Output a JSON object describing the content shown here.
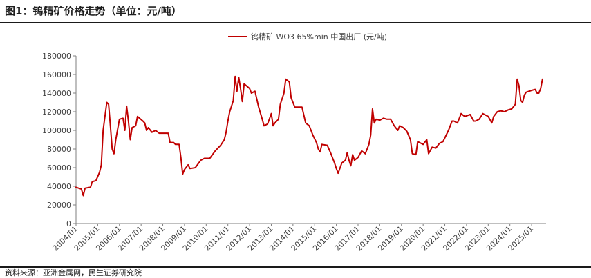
{
  "figure": {
    "title": "图1：钨精矿价格走势（单位：元/吨）",
    "source": "资料来源：亚洲金属网，民生证券研究院"
  },
  "colors": {
    "series": "#C00000",
    "axis": "#7f7f7f",
    "text": "#404040",
    "rule": "#1a1a1a"
  },
  "chart_data": {
    "type": "line",
    "title": "",
    "xlabel": "",
    "ylabel": "",
    "grid": false,
    "legend_position": "top-center",
    "ylim": [
      0,
      180000
    ],
    "yticks": [
      0,
      20000,
      40000,
      60000,
      80000,
      100000,
      120000,
      140000,
      160000,
      180000
    ],
    "xlim": [
      "2004/01",
      "2025/09"
    ],
    "xticks": [
      "2004/01",
      "2005/01",
      "2006/01",
      "2007/01",
      "2008/01",
      "2009/01",
      "2010/01",
      "2011/01",
      "2012/01",
      "2013/01",
      "2014/01",
      "2015/01",
      "2016/01",
      "2017/01",
      "2018/01",
      "2019/01",
      "2020/01",
      "2021/01",
      "2022/01",
      "2023/01",
      "2024/01",
      "2025/01"
    ],
    "series": [
      {
        "name": "钨精矿 WO3 65%min 中国出厂 (元/吨)",
        "points": [
          [
            "2004/01",
            39000
          ],
          [
            "2004/04",
            37000
          ],
          [
            "2004/05",
            30000
          ],
          [
            "2004/06",
            38000
          ],
          [
            "2004/09",
            39000
          ],
          [
            "2004/10",
            45000
          ],
          [
            "2004/12",
            46000
          ],
          [
            "2005/02",
            55000
          ],
          [
            "2005/03",
            63000
          ],
          [
            "2005/04",
            100000
          ],
          [
            "2005/06",
            130000
          ],
          [
            "2005/07",
            128000
          ],
          [
            "2005/08",
            105000
          ],
          [
            "2005/09",
            80000
          ],
          [
            "2005/10",
            75000
          ],
          [
            "2005/11",
            90000
          ],
          [
            "2006/01",
            112000
          ],
          [
            "2006/03",
            113000
          ],
          [
            "2006/04",
            100000
          ],
          [
            "2006/05",
            126000
          ],
          [
            "2006/06",
            110000
          ],
          [
            "2006/07",
            90000
          ],
          [
            "2006/08",
            103000
          ],
          [
            "2006/10",
            105000
          ],
          [
            "2006/11",
            115000
          ],
          [
            "2007/02",
            110000
          ],
          [
            "2007/03",
            108000
          ],
          [
            "2007/04",
            100000
          ],
          [
            "2007/05",
            103000
          ],
          [
            "2007/07",
            98000
          ],
          [
            "2007/09",
            100000
          ],
          [
            "2007/11",
            97000
          ],
          [
            "2008/02",
            97000
          ],
          [
            "2008/04",
            97000
          ],
          [
            "2008/05",
            87000
          ],
          [
            "2008/07",
            87000
          ],
          [
            "2008/08",
            85000
          ],
          [
            "2008/10",
            85000
          ],
          [
            "2008/11",
            71000
          ],
          [
            "2008/12",
            53000
          ],
          [
            "2009/01",
            58000
          ],
          [
            "2009/03",
            63000
          ],
          [
            "2009/04",
            59000
          ],
          [
            "2009/07",
            60000
          ],
          [
            "2009/10",
            68000
          ],
          [
            "2009/12",
            70000
          ],
          [
            "2010/03",
            70000
          ],
          [
            "2010/06",
            78000
          ],
          [
            "2010/09",
            84000
          ],
          [
            "2010/11",
            90000
          ],
          [
            "2010/12",
            98000
          ],
          [
            "2011/01",
            110000
          ],
          [
            "2011/02",
            120000
          ],
          [
            "2011/04",
            132000
          ],
          [
            "2011/05",
            158000
          ],
          [
            "2011/06",
            142000
          ],
          [
            "2011/07",
            157000
          ],
          [
            "2011/08",
            145000
          ],
          [
            "2011/09",
            131000
          ],
          [
            "2011/10",
            150000
          ],
          [
            "2012/01",
            145000
          ],
          [
            "2012/02",
            140000
          ],
          [
            "2012/04",
            142000
          ],
          [
            "2012/06",
            125000
          ],
          [
            "2012/08",
            112000
          ],
          [
            "2012/09",
            105000
          ],
          [
            "2012/11",
            107000
          ],
          [
            "2013/01",
            118000
          ],
          [
            "2013/02",
            105000
          ],
          [
            "2013/03",
            108000
          ],
          [
            "2013/05",
            112000
          ],
          [
            "2013/06",
            128000
          ],
          [
            "2013/08",
            140000
          ],
          [
            "2013/09",
            155000
          ],
          [
            "2013/11",
            152000
          ],
          [
            "2013/12",
            135000
          ],
          [
            "2014/02",
            125000
          ],
          [
            "2014/04",
            125000
          ],
          [
            "2014/06",
            125000
          ],
          [
            "2014/08",
            108000
          ],
          [
            "2014/10",
            105000
          ],
          [
            "2014/12",
            95000
          ],
          [
            "2015/02",
            87000
          ],
          [
            "2015/03",
            80000
          ],
          [
            "2015/04",
            77000
          ],
          [
            "2015/05",
            85000
          ],
          [
            "2015/08",
            84000
          ],
          [
            "2015/10",
            75000
          ],
          [
            "2015/12",
            65000
          ],
          [
            "2016/01",
            59000
          ],
          [
            "2016/02",
            54000
          ],
          [
            "2016/04",
            65000
          ],
          [
            "2016/06",
            68000
          ],
          [
            "2016/07",
            76000
          ],
          [
            "2016/08",
            68000
          ],
          [
            "2016/09",
            62000
          ],
          [
            "2016/10",
            74000
          ],
          [
            "2016/11",
            68000
          ],
          [
            "2017/01",
            71000
          ],
          [
            "2017/03",
            78000
          ],
          [
            "2017/05",
            75000
          ],
          [
            "2017/07",
            85000
          ],
          [
            "2017/08",
            95000
          ],
          [
            "2017/09",
            123000
          ],
          [
            "2017/10",
            108000
          ],
          [
            "2017/11",
            112000
          ],
          [
            "2018/01",
            111000
          ],
          [
            "2018/03",
            113000
          ],
          [
            "2018/05",
            112000
          ],
          [
            "2018/07",
            112000
          ],
          [
            "2018/09",
            105000
          ],
          [
            "2018/11",
            100000
          ],
          [
            "2018/12",
            105000
          ],
          [
            "2019/02",
            103000
          ],
          [
            "2019/04",
            99000
          ],
          [
            "2019/06",
            90000
          ],
          [
            "2019/07",
            75000
          ],
          [
            "2019/09",
            74000
          ],
          [
            "2019/10",
            88000
          ],
          [
            "2019/11",
            87000
          ],
          [
            "2020/01",
            85000
          ],
          [
            "2020/03",
            90000
          ],
          [
            "2020/04",
            75000
          ],
          [
            "2020/06",
            82000
          ],
          [
            "2020/08",
            81000
          ],
          [
            "2020/10",
            86000
          ],
          [
            "2020/12",
            88000
          ],
          [
            "2021/03",
            100000
          ],
          [
            "2021/05",
            110000
          ],
          [
            "2021/06",
            110000
          ],
          [
            "2021/08",
            108000
          ],
          [
            "2021/10",
            118000
          ],
          [
            "2021/12",
            115000
          ],
          [
            "2022/03",
            117000
          ],
          [
            "2022/05",
            110000
          ],
          [
            "2022/06",
            110000
          ],
          [
            "2022/08",
            112000
          ],
          [
            "2022/10",
            118000
          ],
          [
            "2023/01",
            115000
          ],
          [
            "2023/03",
            108000
          ],
          [
            "2023/04",
            115000
          ],
          [
            "2023/06",
            120000
          ],
          [
            "2023/08",
            121000
          ],
          [
            "2023/10",
            120000
          ],
          [
            "2023/12",
            122000
          ],
          [
            "2024/02",
            123000
          ],
          [
            "2024/04",
            128000
          ],
          [
            "2024/05",
            155000
          ],
          [
            "2024/06",
            148000
          ],
          [
            "2024/07",
            132000
          ],
          [
            "2024/08",
            130000
          ],
          [
            "2024/09",
            138000
          ],
          [
            "2024/10",
            141000
          ],
          [
            "2025/01",
            143000
          ],
          [
            "2025/03",
            144000
          ],
          [
            "2025/04",
            140000
          ],
          [
            "2025/05",
            140000
          ],
          [
            "2025/06",
            145000
          ],
          [
            "2025/07",
            155000
          ]
        ]
      }
    ]
  }
}
